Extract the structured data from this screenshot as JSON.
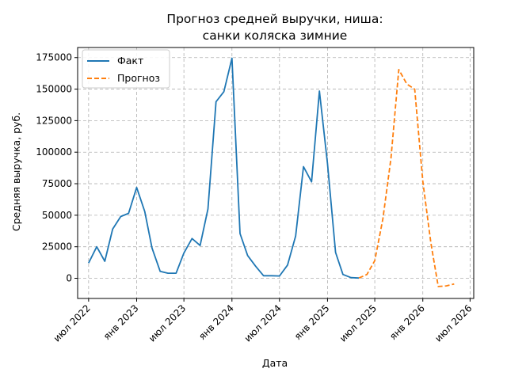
{
  "chart_data": {
    "type": "line",
    "title_line1": "Прогноз средней выручки, ниша:",
    "title_line2": "санки коляска зимние",
    "xlabel": "Дата",
    "ylabel": "Средняя выручка, руб.",
    "x_range": [
      "2022-05-20",
      "2026-07-15"
    ],
    "ylim": [
      -16000,
      183000
    ],
    "grid": true,
    "legend_position": "top-left",
    "x_ticks": [
      {
        "date": "2022-07-01",
        "label": "июл 2022"
      },
      {
        "date": "2023-01-01",
        "label": "янв 2023"
      },
      {
        "date": "2023-07-01",
        "label": "июл 2023"
      },
      {
        "date": "2024-01-01",
        "label": "янв 2024"
      },
      {
        "date": "2024-07-01",
        "label": "июл 2024"
      },
      {
        "date": "2025-01-01",
        "label": "янв 2025"
      },
      {
        "date": "2025-07-01",
        "label": "июл 2025"
      },
      {
        "date": "2026-01-01",
        "label": "янв 2026"
      },
      {
        "date": "2026-07-01",
        "label": "июл 2026"
      }
    ],
    "y_ticks": [
      0,
      25000,
      50000,
      75000,
      100000,
      125000,
      150000,
      175000
    ],
    "series": [
      {
        "name": "Факт",
        "color": "#1f77b4",
        "dash": "solid",
        "points": [
          [
            "2022-07-01",
            12000
          ],
          [
            "2022-08-01",
            25000
          ],
          [
            "2022-09-01",
            13500
          ],
          [
            "2022-10-01",
            39000
          ],
          [
            "2022-11-01",
            49000
          ],
          [
            "2022-12-01",
            51500
          ],
          [
            "2023-01-01",
            72000
          ],
          [
            "2023-02-01",
            53000
          ],
          [
            "2023-03-01",
            24000
          ],
          [
            "2023-04-01",
            5500
          ],
          [
            "2023-05-01",
            4000
          ],
          [
            "2023-06-01",
            4000
          ],
          [
            "2023-07-01",
            20000
          ],
          [
            "2023-08-01",
            31500
          ],
          [
            "2023-09-01",
            26000
          ],
          [
            "2023-10-01",
            55000
          ],
          [
            "2023-11-01",
            140000
          ],
          [
            "2023-12-01",
            148000
          ],
          [
            "2024-01-01",
            174500
          ],
          [
            "2024-02-01",
            35500
          ],
          [
            "2024-03-01",
            18000
          ],
          [
            "2024-04-01",
            9500
          ],
          [
            "2024-05-01",
            2000
          ],
          [
            "2024-06-01",
            2000
          ],
          [
            "2024-07-01",
            1800
          ],
          [
            "2024-08-01",
            10500
          ],
          [
            "2024-09-01",
            33500
          ],
          [
            "2024-10-01",
            88500
          ],
          [
            "2024-11-01",
            76500
          ],
          [
            "2024-12-01",
            148500
          ],
          [
            "2025-01-01",
            91000
          ],
          [
            "2025-02-01",
            20500
          ],
          [
            "2025-03-01",
            3000
          ],
          [
            "2025-04-01",
            500
          ],
          [
            "2025-05-01",
            200
          ]
        ]
      },
      {
        "name": "Прогноз",
        "color": "#ff7f0e",
        "dash": "dashed",
        "points": [
          [
            "2025-05-01",
            200
          ],
          [
            "2025-06-01",
            3000
          ],
          [
            "2025-07-01",
            14000
          ],
          [
            "2025-08-01",
            47000
          ],
          [
            "2025-09-01",
            95000
          ],
          [
            "2025-10-01",
            165500
          ],
          [
            "2025-11-01",
            154000
          ],
          [
            "2025-12-01",
            150000
          ],
          [
            "2026-01-01",
            77000
          ],
          [
            "2026-02-01",
            28000
          ],
          [
            "2026-03-01",
            -6500
          ],
          [
            "2026-04-01",
            -6000
          ],
          [
            "2026-05-01",
            -4500
          ]
        ]
      }
    ]
  }
}
